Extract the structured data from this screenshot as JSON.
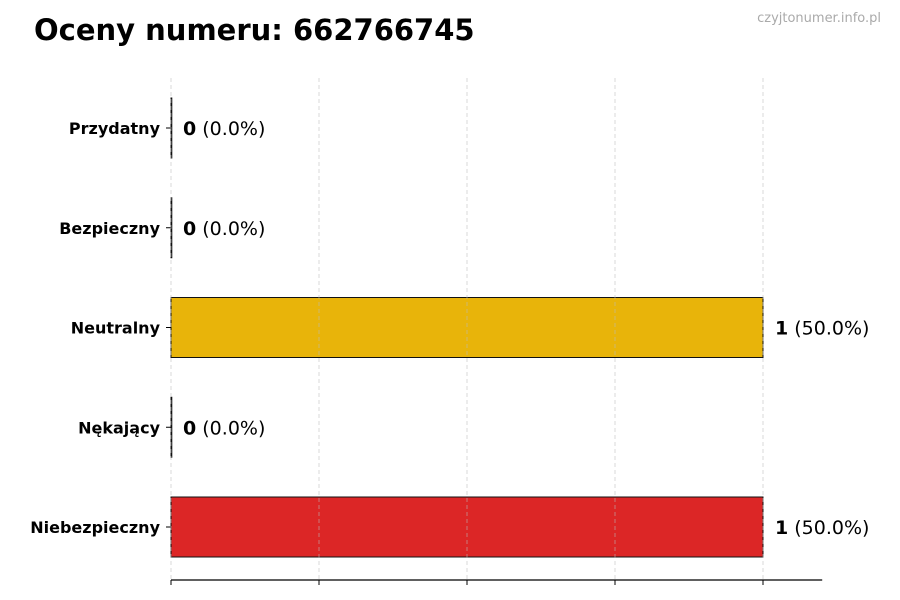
{
  "title": "Oceny numeru: 662766745",
  "watermark": "czyjtonumer.info.pl",
  "chart_data": {
    "type": "bar",
    "orientation": "horizontal",
    "title": "Oceny numeru: 662766745",
    "categories": [
      "Przydatny",
      "Bezpieczny",
      "Neutralny",
      "Nękający",
      "Niebezpieczny"
    ],
    "values": [
      0,
      0,
      1,
      0,
      1
    ],
    "percent_labels": [
      "(0.0%)",
      "(0.0%)",
      "(50.0%)",
      "(0.0%)",
      "(50.0%)"
    ],
    "colors": [
      "#22a33a",
      "#2e7dd1",
      "#e8b40a",
      "#e56b1f",
      "#dc2626"
    ],
    "xlim": [
      0,
      1.1
    ],
    "xticks": [
      0,
      0.25,
      0.5,
      0.75,
      1
    ],
    "xtick_labels_shown": false,
    "grid": "x dashed",
    "xlabel": "",
    "ylabel": ""
  }
}
